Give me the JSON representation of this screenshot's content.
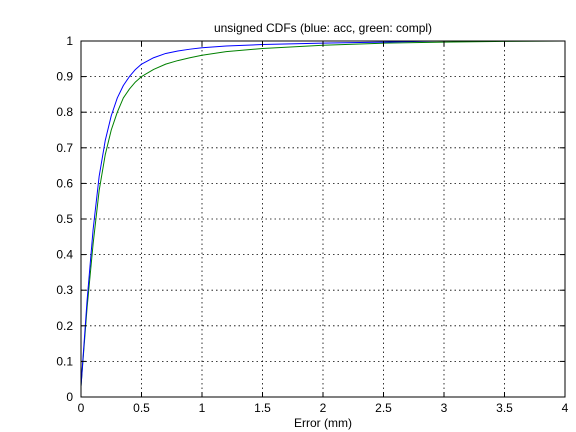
{
  "chart_data": {
    "type": "line",
    "title": "unsigned CDFs (blue: acc, green: compl)",
    "xlabel": "Error (mm)",
    "ylabel": "",
    "xlim": [
      0,
      4
    ],
    "ylim": [
      0,
      1
    ],
    "x_ticks": [
      "0",
      "0.5",
      "1",
      "1.5",
      "2",
      "2.5",
      "3",
      "3.5",
      "4"
    ],
    "y_ticks": [
      "0",
      "0.1",
      "0.2",
      "0.3",
      "0.4",
      "0.5",
      "0.6",
      "0.7",
      "0.8",
      "0.9",
      "1"
    ],
    "grid": true,
    "legend": "none",
    "series": [
      {
        "color": "#0000ff",
        "x": [
          0,
          0.05,
          0.1,
          0.15,
          0.2,
          0.25,
          0.3,
          0.35,
          0.4,
          0.45,
          0.5,
          0.6,
          0.7,
          0.8,
          0.9,
          1.0,
          1.2,
          1.5,
          2.0,
          2.5,
          2.94
        ],
        "y": [
          0.03,
          0.27,
          0.47,
          0.62,
          0.72,
          0.79,
          0.84,
          0.875,
          0.9,
          0.92,
          0.935,
          0.953,
          0.965,
          0.972,
          0.977,
          0.981,
          0.986,
          0.99,
          0.994,
          0.997,
          1.0
        ]
      },
      {
        "color": "#008000",
        "x": [
          0,
          0.05,
          0.1,
          0.15,
          0.2,
          0.25,
          0.3,
          0.35,
          0.4,
          0.45,
          0.5,
          0.6,
          0.7,
          0.8,
          0.9,
          1.0,
          1.2,
          1.5,
          2.0,
          2.5,
          3.0,
          3.5,
          4.0
        ],
        "y": [
          0.03,
          0.25,
          0.43,
          0.58,
          0.68,
          0.75,
          0.8,
          0.84,
          0.865,
          0.885,
          0.9,
          0.92,
          0.935,
          0.945,
          0.953,
          0.96,
          0.97,
          0.979,
          0.988,
          0.994,
          0.997,
          0.999,
          1.0
        ]
      }
    ]
  }
}
